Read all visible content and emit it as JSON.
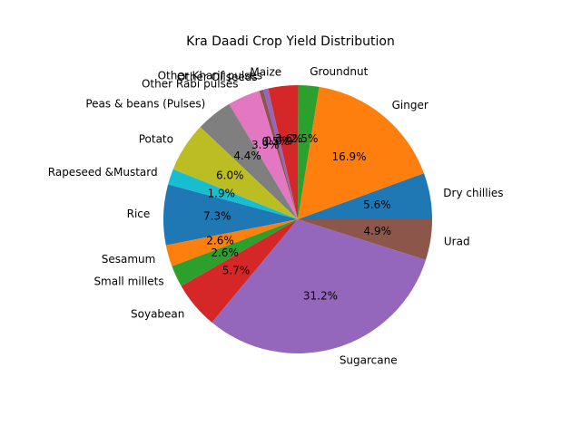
{
  "chart_data": {
    "type": "pie",
    "title": "Kra Daadi Crop Yield Distribution",
    "start_angle_deg": 0,
    "direction": "counterclockwise",
    "slices": [
      {
        "label": "Dry chillies",
        "value": 5.6,
        "pct_label": "5.6%",
        "color": "#1f77b4"
      },
      {
        "label": "Ginger",
        "value": 16.9,
        "pct_label": "16.9%",
        "color": "#ff7f0e"
      },
      {
        "label": "Groundnut",
        "value": 2.5,
        "pct_label": "2.5%",
        "color": "#2ca02c"
      },
      {
        "label": "Maize",
        "value": 3.6,
        "pct_label": "3.6%",
        "color": "#d62728"
      },
      {
        "label": "Other Kharif pulses",
        "value": 0.6,
        "pct_label": "0.6%",
        "color": "#9467bd"
      },
      {
        "label": "Other Oilseeds",
        "value": 0.5,
        "pct_label": "0.5%",
        "color": "#8c564b"
      },
      {
        "label": "Other Rabi pulses",
        "value": 3.9,
        "pct_label": "3.9%",
        "color": "#e377c2"
      },
      {
        "label": "Peas & beans (Pulses)",
        "value": 4.4,
        "pct_label": "4.4%",
        "color": "#7f7f7f"
      },
      {
        "label": "Potato",
        "value": 6.0,
        "pct_label": "6.0%",
        "color": "#bcbd22"
      },
      {
        "label": "Rapeseed &Mustard",
        "value": 1.9,
        "pct_label": "1.9%",
        "color": "#17becf"
      },
      {
        "label": "Rice",
        "value": 7.3,
        "pct_label": "7.3%",
        "color": "#1f77b4"
      },
      {
        "label": "Sesamum",
        "value": 2.6,
        "pct_label": "2.6%",
        "color": "#ff7f0e"
      },
      {
        "label": "Small millets",
        "value": 2.6,
        "pct_label": "2.6%",
        "color": "#2ca02c"
      },
      {
        "label": "Soyabean",
        "value": 5.7,
        "pct_label": "5.7%",
        "color": "#d62728"
      },
      {
        "label": "Sugarcane",
        "value": 31.2,
        "pct_label": "31.2%",
        "color": "#9467bd"
      },
      {
        "label": "Urad",
        "value": 4.9,
        "pct_label": "4.9%",
        "color": "#8c564b"
      }
    ]
  }
}
